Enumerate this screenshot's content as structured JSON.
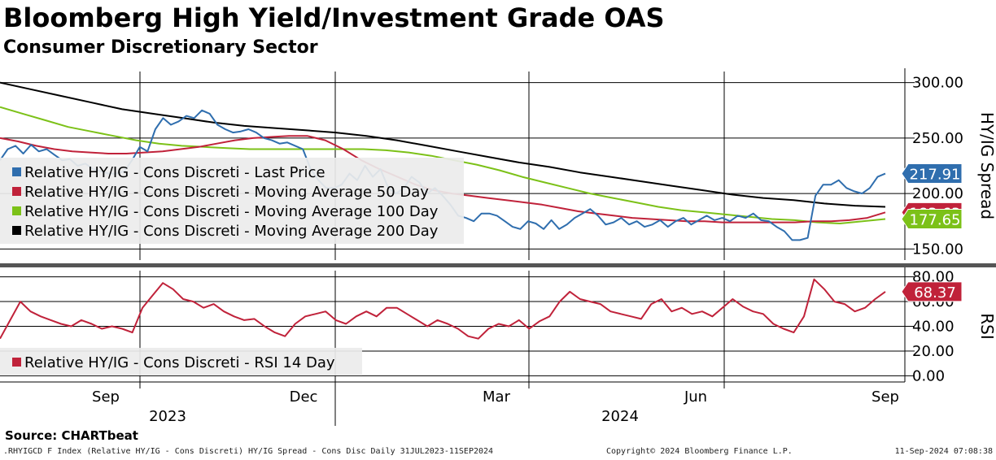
{
  "title": "Bloomberg High Yield/Investment Grade OAS",
  "subtitle": "Consumer Discretionary Sector",
  "source": "Source: CHARTbeat",
  "footer": {
    "index_desc": ".RHYIGCD F Index (Relative HY/IG - Cons Discreti) HY/IG Spread - Cons Disc  Daily 31JUL2023-11SEP2024",
    "copyright": "Copyright© 2024 Bloomberg Finance L.P.",
    "timestamp": "11-Sep-2024 07:08:38"
  },
  "chart_data": [
    {
      "type": "line",
      "ylabel": "HY/IG Spread",
      "ylim": [
        140,
        310
      ],
      "yticks": [
        "150.00",
        "200.00",
        "250.00",
        "300.00"
      ],
      "grid": true,
      "legend_position": "lower-left",
      "series": [
        {
          "name": "Relative HY/IG - Cons Discreti - Last Price",
          "color": "#2f6eae",
          "last_label": "217.91",
          "values": [
            230,
            240,
            243,
            236,
            244,
            238,
            240,
            235,
            230,
            231,
            225,
            227,
            222,
            220,
            218,
            218,
            220,
            230,
            242,
            238,
            258,
            268,
            262,
            265,
            270,
            268,
            275,
            272,
            262,
            258,
            255,
            256,
            258,
            255,
            250,
            248,
            245,
            246,
            243,
            240,
            222,
            212,
            205,
            205,
            208,
            218,
            212,
            225,
            215,
            222,
            205,
            200,
            205,
            215,
            210,
            200,
            205,
            198,
            190,
            180,
            178,
            175,
            182,
            182,
            180,
            175,
            170,
            168,
            175,
            173,
            168,
            176,
            168,
            172,
            178,
            182,
            186,
            180,
            172,
            174,
            178,
            172,
            175,
            170,
            172,
            176,
            170,
            175,
            178,
            172,
            176,
            180,
            176,
            178,
            175,
            180,
            178,
            182,
            176,
            175,
            170,
            166,
            158,
            158,
            160,
            198,
            208,
            208,
            212,
            205,
            202,
            200,
            205,
            215,
            218
          ]
        },
        {
          "name": "Relative HY/IG - Cons Discreti - Moving Average 50 Day",
          "color": "#c0223a",
          "last_label": "183.63",
          "values": [
            250,
            247,
            243,
            240,
            238,
            237,
            236,
            236,
            237,
            238,
            240,
            242,
            245,
            248,
            250,
            251,
            252,
            252,
            248,
            240,
            230,
            222,
            215,
            208,
            203,
            200,
            198,
            196,
            194,
            192,
            190,
            187,
            184,
            182,
            180,
            178,
            177,
            176,
            175,
            175,
            174,
            174,
            174,
            174,
            174,
            175,
            175,
            176,
            178,
            183
          ]
        },
        {
          "name": "Relative HY/IG - Cons Discreti - Moving Average 100 Day",
          "color": "#7cc118",
          "last_label": "177.65",
          "values": [
            278,
            272,
            266,
            260,
            256,
            252,
            248,
            245,
            243,
            242,
            241,
            240,
            240,
            240,
            240,
            240,
            240,
            239,
            237,
            234,
            230,
            226,
            221,
            215,
            210,
            205,
            200,
            196,
            192,
            188,
            185,
            183,
            181,
            179,
            177,
            176,
            174,
            173,
            175,
            177
          ]
        },
        {
          "name": "Relative HY/IG - Cons Discreti - Moving Average 200 Day",
          "color": "#000000",
          "last_label": "",
          "values": [
            300,
            294,
            288,
            282,
            276,
            272,
            268,
            264,
            261,
            259,
            257,
            255,
            252,
            248,
            243,
            238,
            233,
            228,
            224,
            219,
            215,
            211,
            207,
            203,
            199,
            196,
            194,
            191,
            189,
            188
          ]
        }
      ]
    },
    {
      "type": "line",
      "ylabel": "RSI",
      "ylim": [
        -5,
        85
      ],
      "yticks": [
        "0.00",
        "20.00",
        "40.00",
        "60.00",
        "80.00"
      ],
      "grid": true,
      "legend_position": "lower-left",
      "series": [
        {
          "name": "Relative HY/IG - Cons Discreti - RSI 14 Day",
          "color": "#c0223a",
          "last_label": "68.37",
          "values": [
            30,
            45,
            60,
            52,
            48,
            45,
            42,
            40,
            45,
            42,
            38,
            40,
            38,
            35,
            55,
            65,
            75,
            70,
            62,
            60,
            55,
            58,
            52,
            48,
            45,
            46,
            40,
            35,
            32,
            42,
            48,
            50,
            52,
            45,
            42,
            48,
            52,
            48,
            55,
            55,
            50,
            45,
            40,
            45,
            42,
            38,
            32,
            30,
            38,
            42,
            40,
            45,
            38,
            44,
            48,
            60,
            68,
            62,
            60,
            58,
            52,
            50,
            48,
            46,
            58,
            62,
            52,
            55,
            50,
            52,
            48,
            55,
            62,
            56,
            52,
            50,
            42,
            38,
            35,
            48,
            78,
            70,
            60,
            58,
            52,
            55,
            62,
            68
          ]
        }
      ]
    }
  ],
  "xaxis": {
    "month_labels": [
      "Sep",
      "Dec",
      "Mar",
      "Jun",
      "Sep"
    ],
    "year_labels": [
      "2023",
      "2024"
    ]
  }
}
